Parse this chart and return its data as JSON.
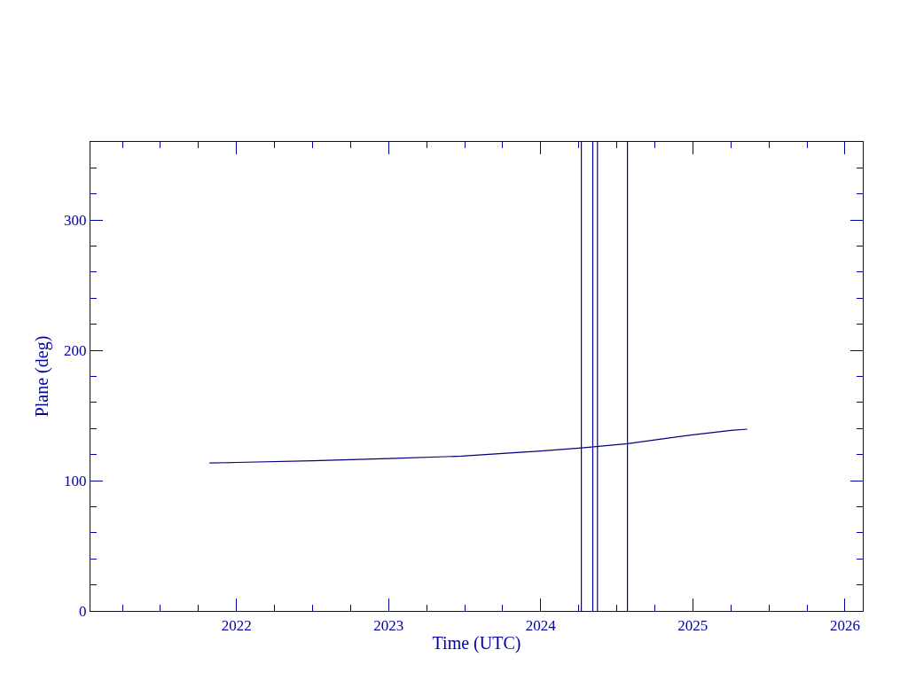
{
  "chart_data": {
    "type": "line",
    "xlabel": "Time (UTC)",
    "ylabel": "Plane (deg)",
    "x": [
      2021.823,
      2022.0,
      2022.5,
      2023.0,
      2023.48,
      2024.0,
      2024.27,
      2024.57,
      2025.0,
      2025.25,
      2025.357
    ],
    "series": [
      {
        "color": "#000080",
        "values": [
          113.5,
          114.0,
          115.3,
          117.0,
          118.8,
          122.8,
          125.2,
          128.4,
          135.2,
          138.6,
          139.5
        ]
      }
    ],
    "xlim": [
      2021.04,
      2026.117
    ],
    "xticks": [
      {
        "value": 2021.25,
        "label": null
      },
      {
        "value": 2021.5,
        "label": null
      },
      {
        "value": 2021.75,
        "label": null
      },
      2022,
      {
        "value": 2022.25,
        "label": null
      },
      {
        "value": 2022.5,
        "label": null
      },
      {
        "value": 2022.75,
        "label": null
      },
      2023,
      {
        "value": 2023.25,
        "label": null
      },
      {
        "value": 2023.5,
        "label": null
      },
      {
        "value": 2023.75,
        "label": null
      },
      2024,
      {
        "value": 2024.25,
        "label": null
      },
      {
        "value": 2024.5,
        "label": null
      },
      {
        "value": 2024.75,
        "label": null
      },
      2025,
      {
        "value": 2025.25,
        "label": null
      },
      {
        "value": 2025.5,
        "label": null
      },
      {
        "value": 2025.75,
        "label": null
      },
      2026
    ],
    "ylim": [
      0,
      360
    ],
    "yticks": [
      0,
      {
        "value": 20,
        "label": null
      },
      {
        "value": 40,
        "label": null
      },
      {
        "value": 60,
        "label": null
      },
      {
        "value": 80,
        "label": null
      },
      100,
      {
        "value": 120,
        "label": null
      },
      {
        "value": 140,
        "label": null
      },
      {
        "value": 160,
        "label": null
      },
      {
        "value": 180,
        "label": null
      },
      200,
      {
        "value": 220,
        "label": null
      },
      {
        "value": 240,
        "label": null
      },
      {
        "value": 260,
        "label": null
      },
      {
        "value": 280,
        "label": null
      },
      300,
      {
        "value": 320,
        "label": null
      },
      {
        "value": 340,
        "label": null
      }
    ],
    "ref_lines": [
      {
        "axis": "x",
        "value": 2024.267,
        "color": "#0000a0"
      },
      {
        "axis": "x",
        "value": 2024.342,
        "color": "#0000a0"
      },
      {
        "axis": "x",
        "value": 2024.373,
        "color": "#0000a0"
      },
      {
        "axis": "x",
        "value": 2024.57,
        "color": "#0000a0"
      }
    ],
    "marker": "none",
    "line_style": "solid"
  }
}
